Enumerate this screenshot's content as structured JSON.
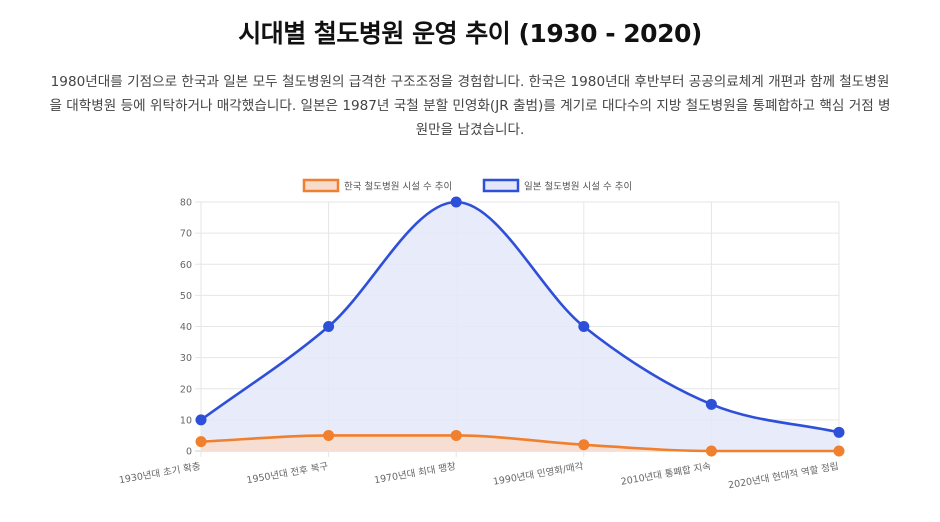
{
  "header": {
    "title": "시대별 철도병원 운영 추이 (1930 - 2020)",
    "description": "1980년대를 기점으로 한국과 일본 모두 철도병원의 급격한 구조조정을 경험합니다. 한국은 1980년대 후반부터 공공의료체계 개편과 함께 철도병원을 대학병원 등에 위탁하거나 매각했습니다. 일본은 1987년 국철 분할 민영화(JR 출범)를 계기로 대다수의 지방 철도병원을 통폐합하고 핵심 거점 병원만을 남겼습니다."
  },
  "chart_data": {
    "type": "area",
    "categories": [
      "1930년대 초기 확충",
      "1950년대 전후 복구",
      "1970년대 최대 팽창",
      "1990년대 민영화/매각",
      "2010년대 통폐합 지속",
      "2020년대 현대적 역할 정립"
    ],
    "series": [
      {
        "name": "한국 철도병원 시설 수 추이",
        "values": [
          3,
          5,
          5,
          2,
          0,
          0
        ],
        "color": "#f07f2e",
        "fill": "#f8dccb"
      },
      {
        "name": "일본 철도병원 시설 수 추이",
        "values": [
          10,
          40,
          80,
          40,
          15,
          6
        ],
        "color": "#2e4fd8",
        "fill": "#e4e7f9"
      }
    ],
    "ylim": [
      0,
      80
    ],
    "yticks": [
      0,
      10,
      20,
      30,
      40,
      50,
      60,
      70,
      80
    ],
    "legend": "top-center",
    "grid": true
  }
}
